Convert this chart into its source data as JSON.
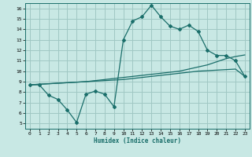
{
  "xlabel": "Humidex (Indice chaleur)",
  "bg_color": "#c8e8e4",
  "grid_color": "#a0c8c4",
  "line_color": "#1a6e6a",
  "xlim": [
    -0.5,
    23.5
  ],
  "ylim": [
    4.5,
    16.5
  ],
  "xticks": [
    0,
    1,
    2,
    3,
    4,
    5,
    6,
    7,
    8,
    9,
    10,
    11,
    12,
    13,
    14,
    15,
    16,
    17,
    18,
    19,
    20,
    21,
    22,
    23
  ],
  "yticks": [
    5,
    6,
    7,
    8,
    9,
    10,
    11,
    12,
    13,
    14,
    15,
    16
  ],
  "curve1_x": [
    0,
    1,
    2,
    3,
    4,
    5,
    6,
    7,
    8,
    9,
    10,
    11,
    12,
    13,
    14,
    15,
    16,
    17,
    18,
    19,
    20,
    21,
    22,
    23
  ],
  "curve1_y": [
    8.7,
    8.7,
    7.7,
    7.3,
    6.3,
    5.1,
    7.8,
    8.1,
    7.8,
    6.6,
    13.0,
    14.8,
    15.2,
    16.3,
    15.2,
    14.3,
    14.0,
    14.4,
    13.8,
    12.0,
    11.5,
    11.5,
    11.0,
    9.5
  ],
  "curve2_x": [
    0,
    1,
    2,
    3,
    4,
    5,
    6,
    7,
    8,
    9,
    10,
    11,
    12,
    13,
    14,
    15,
    16,
    17,
    18,
    19,
    20,
    21,
    22,
    23
  ],
  "curve2_y": [
    8.7,
    8.75,
    8.8,
    8.85,
    8.9,
    8.95,
    9.0,
    9.1,
    9.2,
    9.3,
    9.4,
    9.5,
    9.6,
    9.7,
    9.8,
    9.9,
    10.0,
    10.2,
    10.4,
    10.6,
    10.9,
    11.2,
    11.4,
    11.55
  ],
  "curve3_x": [
    0,
    1,
    2,
    3,
    4,
    5,
    6,
    7,
    8,
    9,
    10,
    11,
    12,
    13,
    14,
    15,
    16,
    17,
    18,
    19,
    20,
    21,
    22,
    23
  ],
  "curve3_y": [
    8.7,
    8.75,
    8.8,
    8.85,
    8.9,
    8.95,
    9.0,
    9.05,
    9.1,
    9.15,
    9.2,
    9.3,
    9.4,
    9.5,
    9.6,
    9.7,
    9.8,
    9.9,
    10.0,
    10.05,
    10.1,
    10.15,
    10.2,
    9.5
  ]
}
